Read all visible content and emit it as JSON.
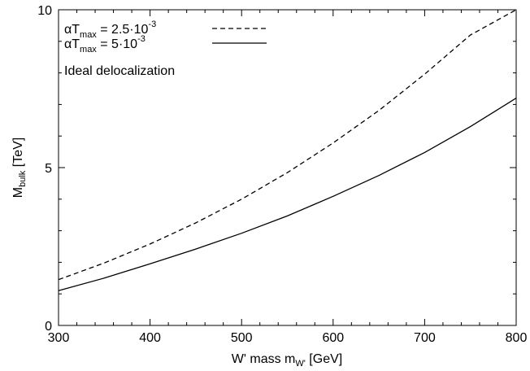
{
  "chart_data": {
    "type": "line",
    "xlabel": {
      "main": "W' mass m",
      "sub": "W'",
      "tail": " [GeV]"
    },
    "ylabel": {
      "main": "M",
      "sub": "bulk",
      "tail": " [TeV]"
    },
    "xlim": [
      300,
      800
    ],
    "ylim": [
      0,
      10
    ],
    "xticks": [
      300,
      400,
      500,
      600,
      700,
      800
    ],
    "yticks": [
      0,
      5,
      10
    ],
    "x_minor_step": 20,
    "y_minor_step": 1,
    "grid": false,
    "legend_position": "top-left",
    "annotation": "Ideal delocalization",
    "series": [
      {
        "label_sym": "αT",
        "label_sub": "max",
        "label_eq": " =  2.5·10",
        "label_sup": "-3",
        "line_style": "dashed",
        "color": "#000000",
        "x": [
          300,
          350,
          400,
          450,
          500,
          550,
          600,
          650,
          700,
          750,
          800
        ],
        "y": [
          1.45,
          1.98,
          2.58,
          3.25,
          4.0,
          4.84,
          5.78,
          6.81,
          7.96,
          9.2,
          10.0
        ]
      },
      {
        "label_sym": "αT",
        "label_sub": "max",
        "label_eq": " =  5·10",
        "label_sup": "-3",
        "line_style": "solid",
        "color": "#000000",
        "x": [
          300,
          350,
          400,
          450,
          500,
          550,
          600,
          650,
          700,
          750,
          800
        ],
        "y": [
          1.1,
          1.5,
          1.95,
          2.42,
          2.92,
          3.47,
          4.09,
          4.75,
          5.48,
          6.3,
          7.2
        ]
      }
    ]
  }
}
